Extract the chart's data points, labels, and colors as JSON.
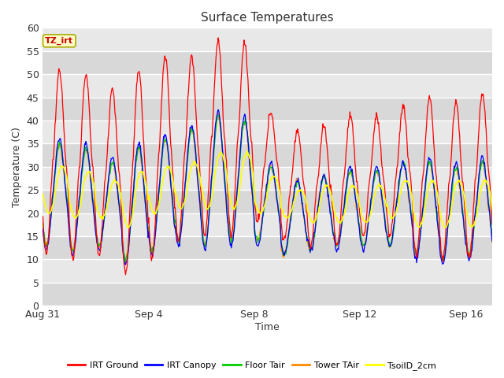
{
  "title": "Surface Temperatures",
  "xlabel": "Time",
  "ylabel": "Temperature (C)",
  "ylim": [
    0,
    60
  ],
  "yticks": [
    0,
    5,
    10,
    15,
    20,
    25,
    30,
    35,
    40,
    45,
    50,
    55,
    60
  ],
  "x_tick_labels": [
    "Aug 31",
    "Sep 4",
    "Sep 8",
    "Sep 12",
    "Sep 16"
  ],
  "annotation_text": "TZ_irt",
  "annotation_bg": "#ffffcc",
  "annotation_fg": "#cc0000",
  "annotation_border": "#aaaa00",
  "plot_bg_light": "#e8e8e8",
  "plot_bg_dark": "#d8d8d8",
  "legend_entries": [
    "IRT Ground",
    "IRT Canopy",
    "Floor Tair",
    "Tower TAir",
    "TsoilD_2cm"
  ],
  "legend_colors": [
    "#ff0000",
    "#0000ff",
    "#00cc00",
    "#ff8800",
    "#ffff00"
  ],
  "series_colors": [
    "#ff0000",
    "#0000ff",
    "#00cc00",
    "#ff8800",
    "#ffff00"
  ],
  "tick_positions": [
    0,
    4,
    8,
    12,
    16
  ],
  "n_days": 17,
  "samples_per_day": 48
}
